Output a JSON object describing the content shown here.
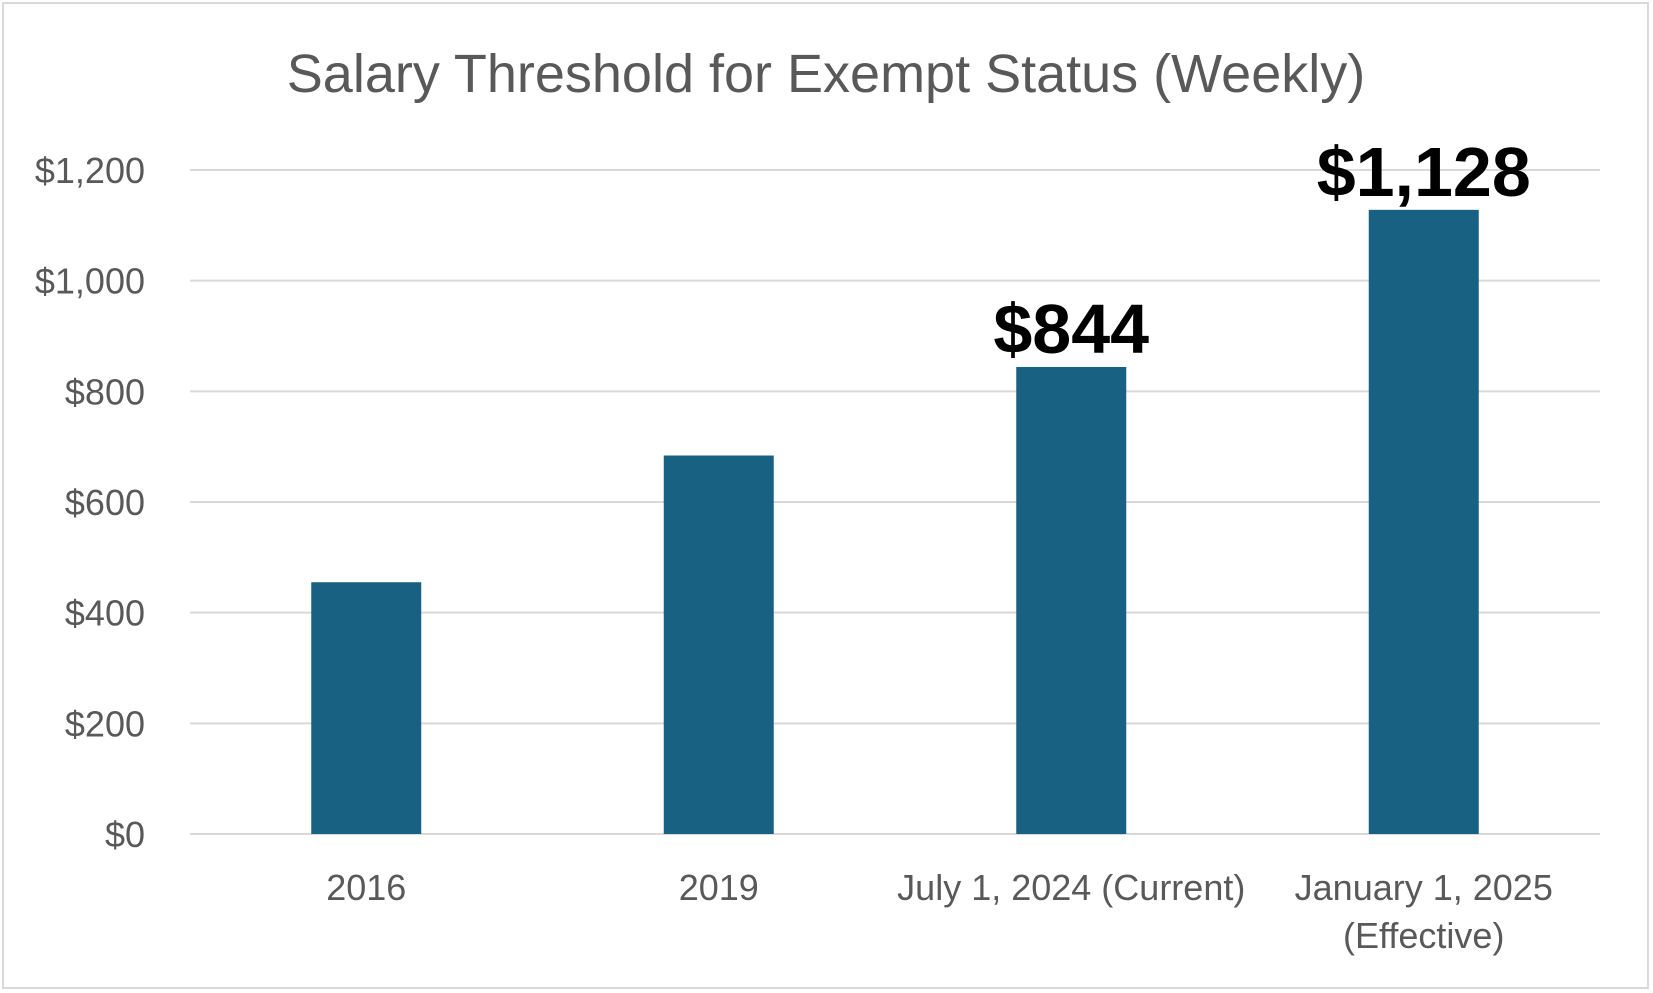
{
  "chart_data": {
    "type": "bar",
    "title": "Salary Threshold for Exempt Status (Weekly)",
    "categories": [
      [
        "2016"
      ],
      [
        "2019"
      ],
      [
        "July 1, 2024 (Current)"
      ],
      [
        "January 1, 2025",
        "(Effective)"
      ]
    ],
    "values": [
      455,
      684,
      844,
      1128
    ],
    "data_labels": [
      "",
      "",
      "$844",
      "$1,128"
    ],
    "ylim": [
      0,
      1200
    ],
    "yticks": [
      0,
      200,
      400,
      600,
      800,
      1000,
      1200
    ],
    "ytick_labels": [
      "$0",
      "$200",
      "$400",
      "$600",
      "$800",
      "$1,000",
      "$1,200"
    ],
    "xlabel": "",
    "ylabel": "",
    "grid": true,
    "legend": "none",
    "colors": {
      "bar": "#186183",
      "grid": "#d9d9d9",
      "text": "#595959",
      "data_label": "#000000"
    }
  }
}
